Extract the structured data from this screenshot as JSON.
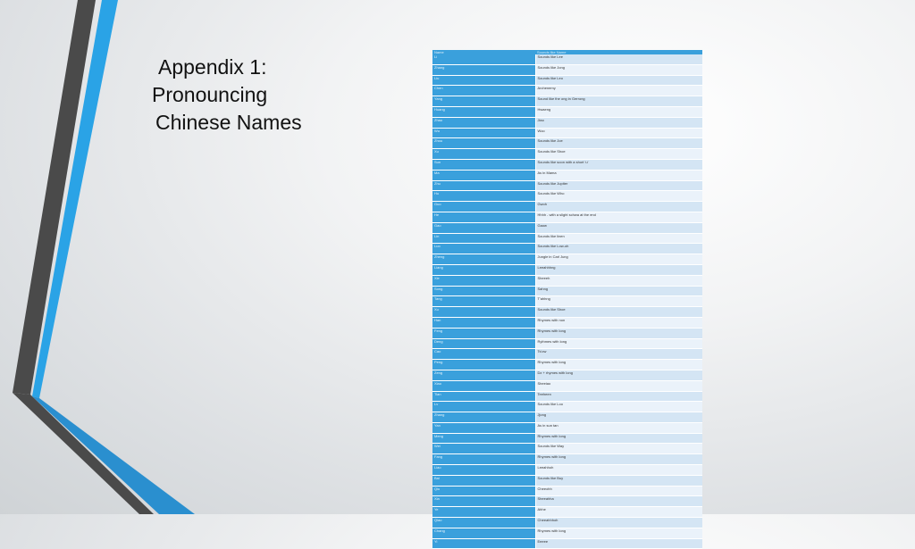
{
  "title_lines": [
    "Appendix 1:",
    "Pronouncing",
    "Chinese Names"
  ],
  "table": {
    "headers": [
      "Name",
      "Sounds like Name"
    ],
    "rows": [
      [
        "Li",
        "Sounds like Lee"
      ],
      [
        "Zhang",
        "Sounds like Jong"
      ],
      [
        "Liu",
        "Sounds like Leo"
      ],
      [
        "Chen",
        "Archenemy"
      ],
      [
        "Yang",
        "Sound like the ong in Gerrong"
      ],
      [
        "Huang",
        "Hwaeng"
      ],
      [
        "Zhao",
        "Jiao"
      ],
      [
        "Wu",
        "Woo"
      ],
      [
        "Zhou",
        "Sounds like Joe"
      ],
      [
        "Xu",
        "Sounds like Shoe"
      ],
      [
        "Sun",
        "Sounds like soon with a short 'u'"
      ],
      [
        "Ma",
        "As in Mama"
      ],
      [
        "Zhu",
        "Sounds like Jupiter"
      ],
      [
        "Hu",
        "Sounds like Who"
      ],
      [
        "Guo",
        "Gwoh"
      ],
      [
        "He",
        "Hhhh - with a slight schwa at the end"
      ],
      [
        "Gao",
        "Gaow"
      ],
      [
        "Lin",
        "Sounds like linen"
      ],
      [
        "Luo",
        "Sounds like Low-oh"
      ],
      [
        "Zheng",
        "Jungle in Carl Jung"
      ],
      [
        "Liang",
        "Leeahhhng"
      ],
      [
        "Xie",
        "Sheeeh"
      ],
      [
        "Song",
        "Sahng"
      ],
      [
        "Tang",
        "T'ahhng"
      ],
      [
        "Xu",
        "Sounds like Shoe"
      ],
      [
        "Han",
        "Rhymes with non"
      ],
      [
        "Feng",
        "Rhymes with long"
      ],
      [
        "Deng",
        "Rythmes with long"
      ],
      [
        "Cao",
        "Ts'ow"
      ],
      [
        "Peng",
        "Rhymes with long"
      ],
      [
        "Zeng",
        "Dz + rhymes with long"
      ],
      [
        "Xiao",
        "Sheeiao"
      ],
      [
        "Tian",
        "Teeheen"
      ],
      [
        "Lv",
        "Sounds like Loo"
      ],
      [
        "Zhang",
        "Jjong"
      ],
      [
        "Yan",
        "As in sun tan"
      ],
      [
        "Meng",
        "Rhymes with long"
      ],
      [
        "Wei",
        "Sounds like Way"
      ],
      [
        "Fang",
        "Rhymes with long"
      ],
      [
        "Liao",
        "Leeahhoh"
      ],
      [
        "Bai",
        "Sounds like Buy"
      ],
      [
        "Qiu",
        "Cheeohh"
      ],
      [
        "Xia",
        "Sheeahha"
      ],
      [
        "Ye",
        "Ahhe"
      ],
      [
        "Qiao",
        "Cheeahhhoh"
      ],
      [
        "Chang",
        "Rhymes with long"
      ],
      [
        "Yi",
        "Eeeee"
      ]
    ]
  },
  "colors": {
    "accent_blue": "#3aa0dc",
    "dark_stripe": "#4a4a4a",
    "row_light": "#d4e5f4",
    "row_lighter": "#eaf2fa"
  }
}
